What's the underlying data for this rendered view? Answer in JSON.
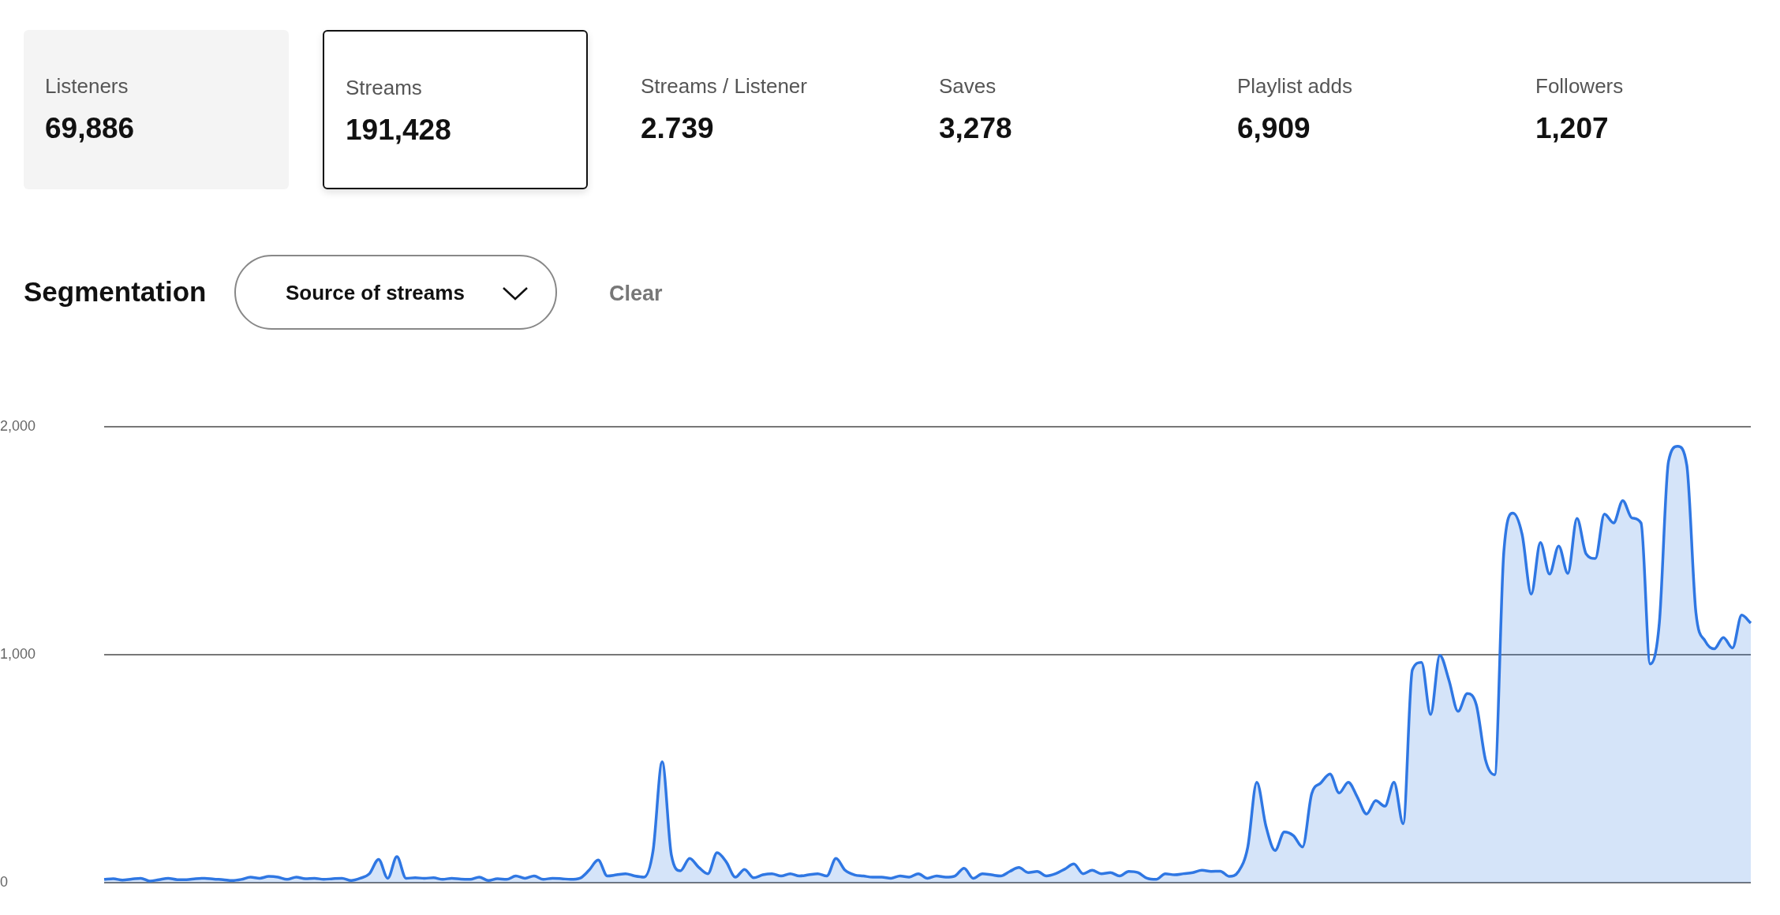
{
  "chart_data": [
    {
      "type": "other",
      "annotations": [
        "Listeners",
        "69,886",
        "Streams",
        "191,428",
        "Streams / Listener",
        "2.739",
        "Saves",
        "3,278",
        "Playlist adds",
        "6,909",
        "Followers",
        "1,207",
        "Segmentation",
        "Source of streams",
        "Clear"
      ]
    },
    {
      "type": "area",
      "categories": [
        null,
        null,
        null,
        null,
        null,
        null,
        null,
        null,
        null,
        null,
        null,
        null,
        null,
        null,
        null,
        null,
        null,
        null,
        null,
        null,
        null,
        null,
        null,
        null,
        null,
        null,
        null,
        null,
        null,
        null,
        null,
        null,
        null,
        null,
        null,
        null,
        null,
        null,
        null,
        null,
        null,
        null,
        null,
        null,
        null,
        null,
        null,
        null,
        null,
        null,
        null,
        null,
        null,
        null,
        null,
        null,
        null,
        null,
        null,
        null,
        null,
        null,
        null,
        null,
        null,
        null,
        null,
        null,
        null,
        null,
        null,
        null,
        null,
        null,
        null,
        null,
        null,
        null,
        null,
        null,
        null,
        null,
        null,
        null,
        null,
        null,
        null,
        null,
        null,
        null,
        null,
        null,
        null,
        null,
        null,
        null,
        null,
        null,
        null,
        null,
        null,
        null,
        null,
        null,
        null,
        null,
        null,
        null,
        null,
        null,
        null,
        null,
        null,
        null,
        null,
        null,
        null,
        null,
        null,
        null,
        null,
        null,
        null,
        null,
        null,
        null,
        null,
        null,
        null,
        null,
        null,
        null,
        null,
        null,
        null,
        null,
        null,
        null,
        null,
        null,
        null,
        null,
        null,
        null,
        null,
        null,
        null,
        null,
        null,
        null,
        null,
        null,
        null,
        null,
        null,
        null,
        null,
        null,
        null,
        null,
        null,
        null,
        null,
        null,
        null,
        null,
        null,
        null,
        null,
        null,
        null,
        null,
        null,
        null,
        null,
        null,
        null,
        null,
        null,
        null,
        null
      ],
      "series": [
        {
          "color": "#2f77e3",
          "values": [
            15,
            18,
            12,
            16,
            20,
            8,
            14,
            20,
            14,
            14,
            18,
            20,
            16,
            14,
            10,
            15,
            25,
            20,
            28,
            25,
            15,
            25,
            18,
            20,
            15,
            18,
            20,
            10,
            20,
            40,
            103,
            20,
            115,
            20,
            22,
            20,
            22,
            15,
            20,
            16,
            15,
            25,
            10,
            18,
            15,
            30,
            20,
            30,
            15,
            20,
            18,
            15,
            20,
            55,
            100,
            30,
            35,
            40,
            30,
            25,
            140,
            531,
            123,
            53,
            107,
            68,
            40,
            132,
            92,
            25,
            59,
            22,
            35,
            40,
            30,
            40,
            30,
            35,
            40,
            30,
            107,
            55,
            35,
            30,
            25,
            25,
            20,
            30,
            25,
            40,
            20,
            30,
            25,
            30,
            64,
            20,
            40,
            35,
            30,
            50,
            67,
            45,
            50,
            30,
            40,
            60,
            83,
            40,
            55,
            40,
            45,
            30,
            50,
            45,
            20,
            15,
            40,
            35,
            40,
            45,
            55,
            50,
            51,
            28,
            50,
            154,
            441,
            248,
            142,
            223,
            207,
            157,
            391,
            438,
            477,
            394,
            441,
            375,
            302,
            360,
            336,
            441,
            259,
            933,
            967,
            738,
            998,
            889,
            752,
            830,
            780,
            539,
            474,
            1450,
            1621,
            1528,
            1266,
            1492,
            1354,
            1477,
            1357,
            1598,
            1442,
            1422,
            1617,
            1578,
            1676,
            1600,
            1578,
            960,
            1139,
            1847,
            1914,
            1832,
            1185,
            1061,
            1026,
            1076,
            1030,
            1174,
            1139
          ]
        }
      ],
      "ylim": [
        0,
        2000
      ],
      "yticks": [
        {
          "value": 0,
          "label": "0"
        },
        {
          "value": 1000,
          "label": "1,000"
        },
        {
          "value": 2000,
          "label": "2,000"
        }
      ],
      "grid": "y",
      "tick_labels": "y",
      "legend": false,
      "marker": "none",
      "line_style": "solid"
    }
  ]
}
